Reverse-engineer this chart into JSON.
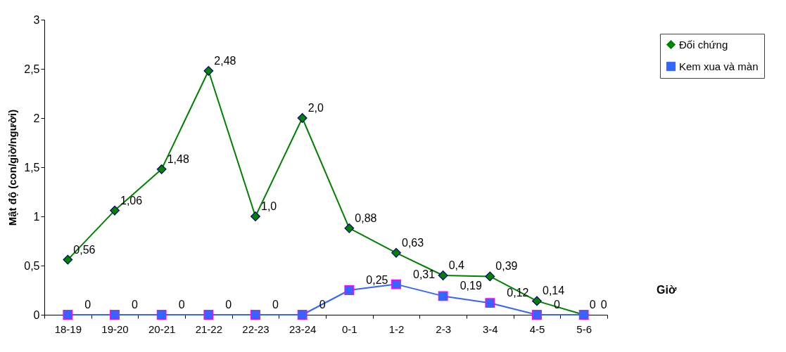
{
  "chart_data": {
    "type": "line",
    "xlabel": "Giờ",
    "ylabel": "Mật độ (con/giờ/người)",
    "categories": [
      "18-19",
      "19-20",
      "20-21",
      "21-22",
      "22-23",
      "23-24",
      "0-1",
      "1-2",
      "2-3",
      "3-4",
      "4-5",
      "5-6"
    ],
    "series": [
      {
        "name": "Đối chứng",
        "color": "#008000",
        "marker": "diamond",
        "values": [
          0.56,
          1.06,
          1.48,
          2.48,
          1.0,
          2.0,
          0.88,
          0.63,
          0.4,
          0.39,
          0.14,
          0
        ],
        "value_labels": [
          "0,56",
          "1,06",
          "1,48",
          "2,48",
          "1,0",
          "2,0",
          "0,88",
          "0,63",
          "0,4",
          "0,39",
          "0,14",
          "0"
        ]
      },
      {
        "name": "Kem xua và màn",
        "color": "#3366ff",
        "marker": "square",
        "values": [
          0,
          0,
          0,
          0,
          0,
          0,
          0.25,
          0.31,
          0.19,
          0.12,
          0,
          0
        ],
        "value_labels": [
          "0",
          "0",
          "0",
          "0",
          "0",
          "0",
          "0,25",
          "0,31",
          "0,19",
          "0,12",
          "0",
          "0"
        ]
      }
    ],
    "ylim": [
      0,
      3
    ],
    "yticks": [
      0,
      {
        "value": 0.5,
        "label": "0,5"
      },
      1,
      {
        "value": 1.5,
        "label": "1,5"
      },
      2,
      {
        "value": 2.5,
        "label": "2,5"
      },
      3
    ],
    "grid": false,
    "legend": "top right"
  }
}
